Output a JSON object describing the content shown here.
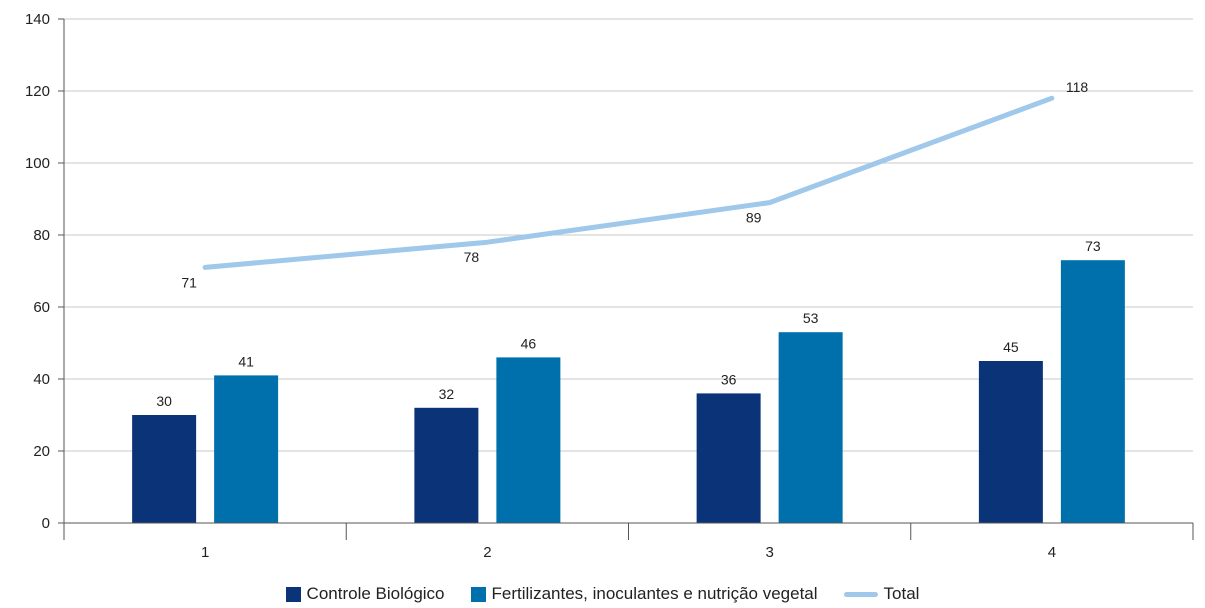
{
  "chart_data": {
    "type": "bar",
    "title": "",
    "xlabel": "",
    "ylabel": "",
    "categories": [
      "1",
      "2",
      "3",
      "4"
    ],
    "ylim": [
      0,
      140
    ],
    "yticks": [
      "0",
      "20",
      "40",
      "60",
      "80",
      "100",
      "120",
      "140"
    ],
    "grid": true,
    "legend_position": "bottom-center",
    "series": [
      {
        "name": "Controle Biológico",
        "type": "bar",
        "color": "#0b3478",
        "values": [
          30,
          32,
          36,
          45
        ]
      },
      {
        "name": "Fertilizantes, inoculantes e nutrição vegetal",
        "type": "bar",
        "color": "#0070ac",
        "values": [
          41,
          46,
          53,
          73
        ]
      },
      {
        "name": "Total",
        "type": "line",
        "color": "#9fc8ea",
        "values": [
          71,
          78,
          89,
          118
        ]
      }
    ]
  }
}
